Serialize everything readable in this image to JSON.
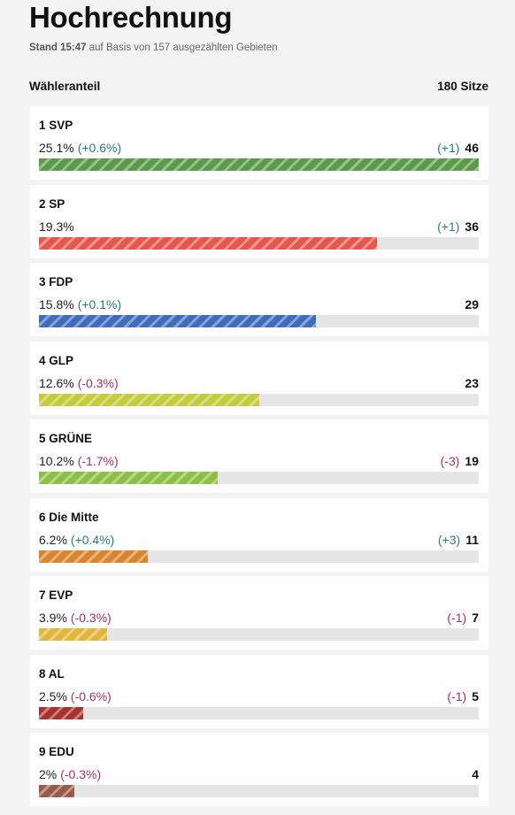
{
  "header": {
    "title": "Hochrechnung",
    "stand_label": "Stand 15:47",
    "stand_rest": "auf Basis von 157 ausgezählten Gebieten",
    "share_label": "Wähleranteil",
    "seats_total": "180 Sitze"
  },
  "parties": [
    {
      "label": "1 SVP",
      "pct_text": "25.1%",
      "share": 25.1,
      "change": "(+0.6%)",
      "change_sign": "pos",
      "seat_change": "(+1)",
      "seat_change_sign": "pos",
      "seats": "46",
      "color": "#5a9a4a"
    },
    {
      "label": "2 SP",
      "pct_text": "19.3%",
      "share": 19.3,
      "change": "",
      "change_sign": "pos",
      "seat_change": "(+1)",
      "seat_change_sign": "pos",
      "seats": "36",
      "color": "#e5564c"
    },
    {
      "label": "3 FDP",
      "pct_text": "15.8%",
      "share": 15.8,
      "change": "(+0.1%)",
      "change_sign": "pos",
      "seat_change": "",
      "seat_change_sign": "pos",
      "seats": "29",
      "color": "#3f6dbb"
    },
    {
      "label": "4 GLP",
      "pct_text": "12.6%",
      "share": 12.6,
      "change": "(-0.3%)",
      "change_sign": "neg",
      "seat_change": "",
      "seat_change_sign": "neg",
      "seats": "23",
      "color": "#c3cc3a"
    },
    {
      "label": "5 GRÜNE",
      "pct_text": "10.2%",
      "share": 10.2,
      "change": "(-1.7%)",
      "change_sign": "neg",
      "seat_change": "(-3)",
      "seat_change_sign": "neg",
      "seats": "19",
      "color": "#8cbf45"
    },
    {
      "label": "6 Die Mitte",
      "pct_text": "6.2%",
      "share": 6.2,
      "change": "(+0.4%)",
      "change_sign": "pos",
      "seat_change": "(+3)",
      "seat_change_sign": "pos",
      "seats": "11",
      "color": "#d8852e"
    },
    {
      "label": "7 EVP",
      "pct_text": "3.9%",
      "share": 3.9,
      "change": "(-0.3%)",
      "change_sign": "neg",
      "seat_change": "(-1)",
      "seat_change_sign": "neg",
      "seats": "7",
      "color": "#e3b53a"
    },
    {
      "label": "8 AL",
      "pct_text": "2.5%",
      "share": 2.5,
      "change": "(-0.6%)",
      "change_sign": "neg",
      "seat_change": "(-1)",
      "seat_change_sign": "neg",
      "seats": "5",
      "color": "#a8302e"
    },
    {
      "label": "9 EDU",
      "pct_text": "2%",
      "share": 2.0,
      "change": "(-0.3%)",
      "change_sign": "neg",
      "seat_change": "",
      "seat_change_sign": "neg",
      "seats": "4",
      "color": "#9a5a4a"
    }
  ]
}
